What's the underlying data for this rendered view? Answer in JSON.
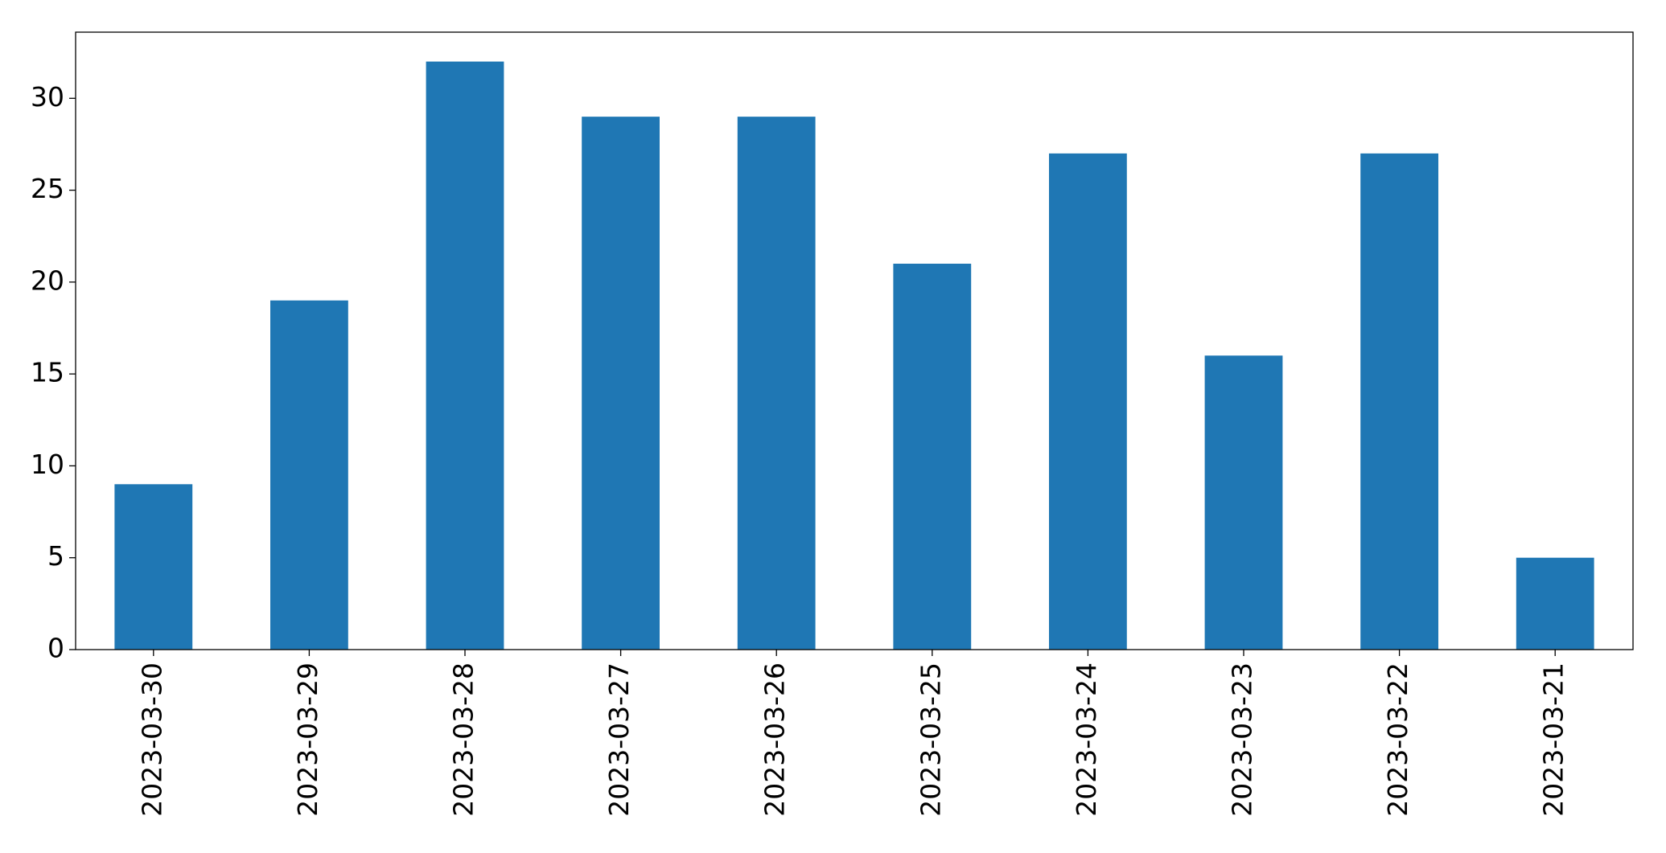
{
  "chart_data": {
    "type": "bar",
    "categories": [
      "2023-03-30",
      "2023-03-29",
      "2023-03-28",
      "2023-03-27",
      "2023-03-26",
      "2023-03-25",
      "2023-03-24",
      "2023-03-23",
      "2023-03-22",
      "2023-03-21"
    ],
    "values": [
      9,
      19,
      32,
      29,
      29,
      21,
      27,
      16,
      27,
      5
    ],
    "color": "#1f77b4",
    "ylim": [
      0,
      33.6
    ],
    "yticks": [
      0,
      5,
      10,
      15,
      20,
      25,
      30
    ],
    "grid": false
  }
}
